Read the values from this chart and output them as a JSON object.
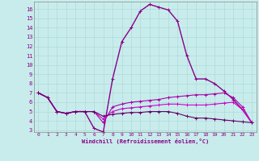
{
  "xlabel": "Windchill (Refroidissement éolien,°C)",
  "xlim": [
    -0.5,
    23.5
  ],
  "ylim": [
    2.8,
    16.8
  ],
  "yticks": [
    3,
    4,
    5,
    6,
    7,
    8,
    9,
    10,
    11,
    12,
    13,
    14,
    15,
    16
  ],
  "xticks": [
    0,
    1,
    2,
    3,
    4,
    5,
    6,
    7,
    8,
    9,
    10,
    11,
    12,
    13,
    14,
    15,
    16,
    17,
    18,
    19,
    20,
    21,
    22,
    23
  ],
  "bg_color": "#c8ecec",
  "grid_color": "#b0d8d8",
  "line_colors": [
    "#880088",
    "#aa00aa",
    "#cc00cc",
    "#660066"
  ],
  "lines": [
    [
      7.0,
      6.5,
      5.0,
      4.8,
      5.0,
      5.0,
      3.2,
      2.8,
      8.5,
      12.5,
      14.0,
      15.8,
      16.5,
      16.2,
      15.9,
      14.7,
      11.0,
      8.5,
      8.5,
      8.0,
      7.2,
      6.3,
      5.2,
      3.8
    ],
    [
      7.0,
      6.5,
      5.0,
      4.8,
      5.0,
      5.0,
      5.0,
      3.8,
      5.5,
      5.8,
      6.0,
      6.1,
      6.2,
      6.3,
      6.5,
      6.6,
      6.7,
      6.8,
      6.8,
      6.9,
      7.0,
      6.5,
      5.5,
      3.8
    ],
    [
      7.0,
      6.5,
      5.0,
      4.8,
      5.0,
      5.0,
      5.0,
      4.2,
      5.0,
      5.3,
      5.4,
      5.5,
      5.6,
      5.7,
      5.8,
      5.8,
      5.7,
      5.7,
      5.7,
      5.8,
      5.9,
      6.0,
      5.2,
      3.8
    ],
    [
      7.0,
      6.5,
      5.0,
      4.8,
      5.0,
      5.0,
      5.0,
      4.5,
      4.7,
      4.8,
      4.9,
      4.9,
      5.0,
      5.0,
      5.0,
      4.8,
      4.5,
      4.3,
      4.3,
      4.2,
      4.1,
      4.0,
      3.9,
      3.8
    ]
  ]
}
